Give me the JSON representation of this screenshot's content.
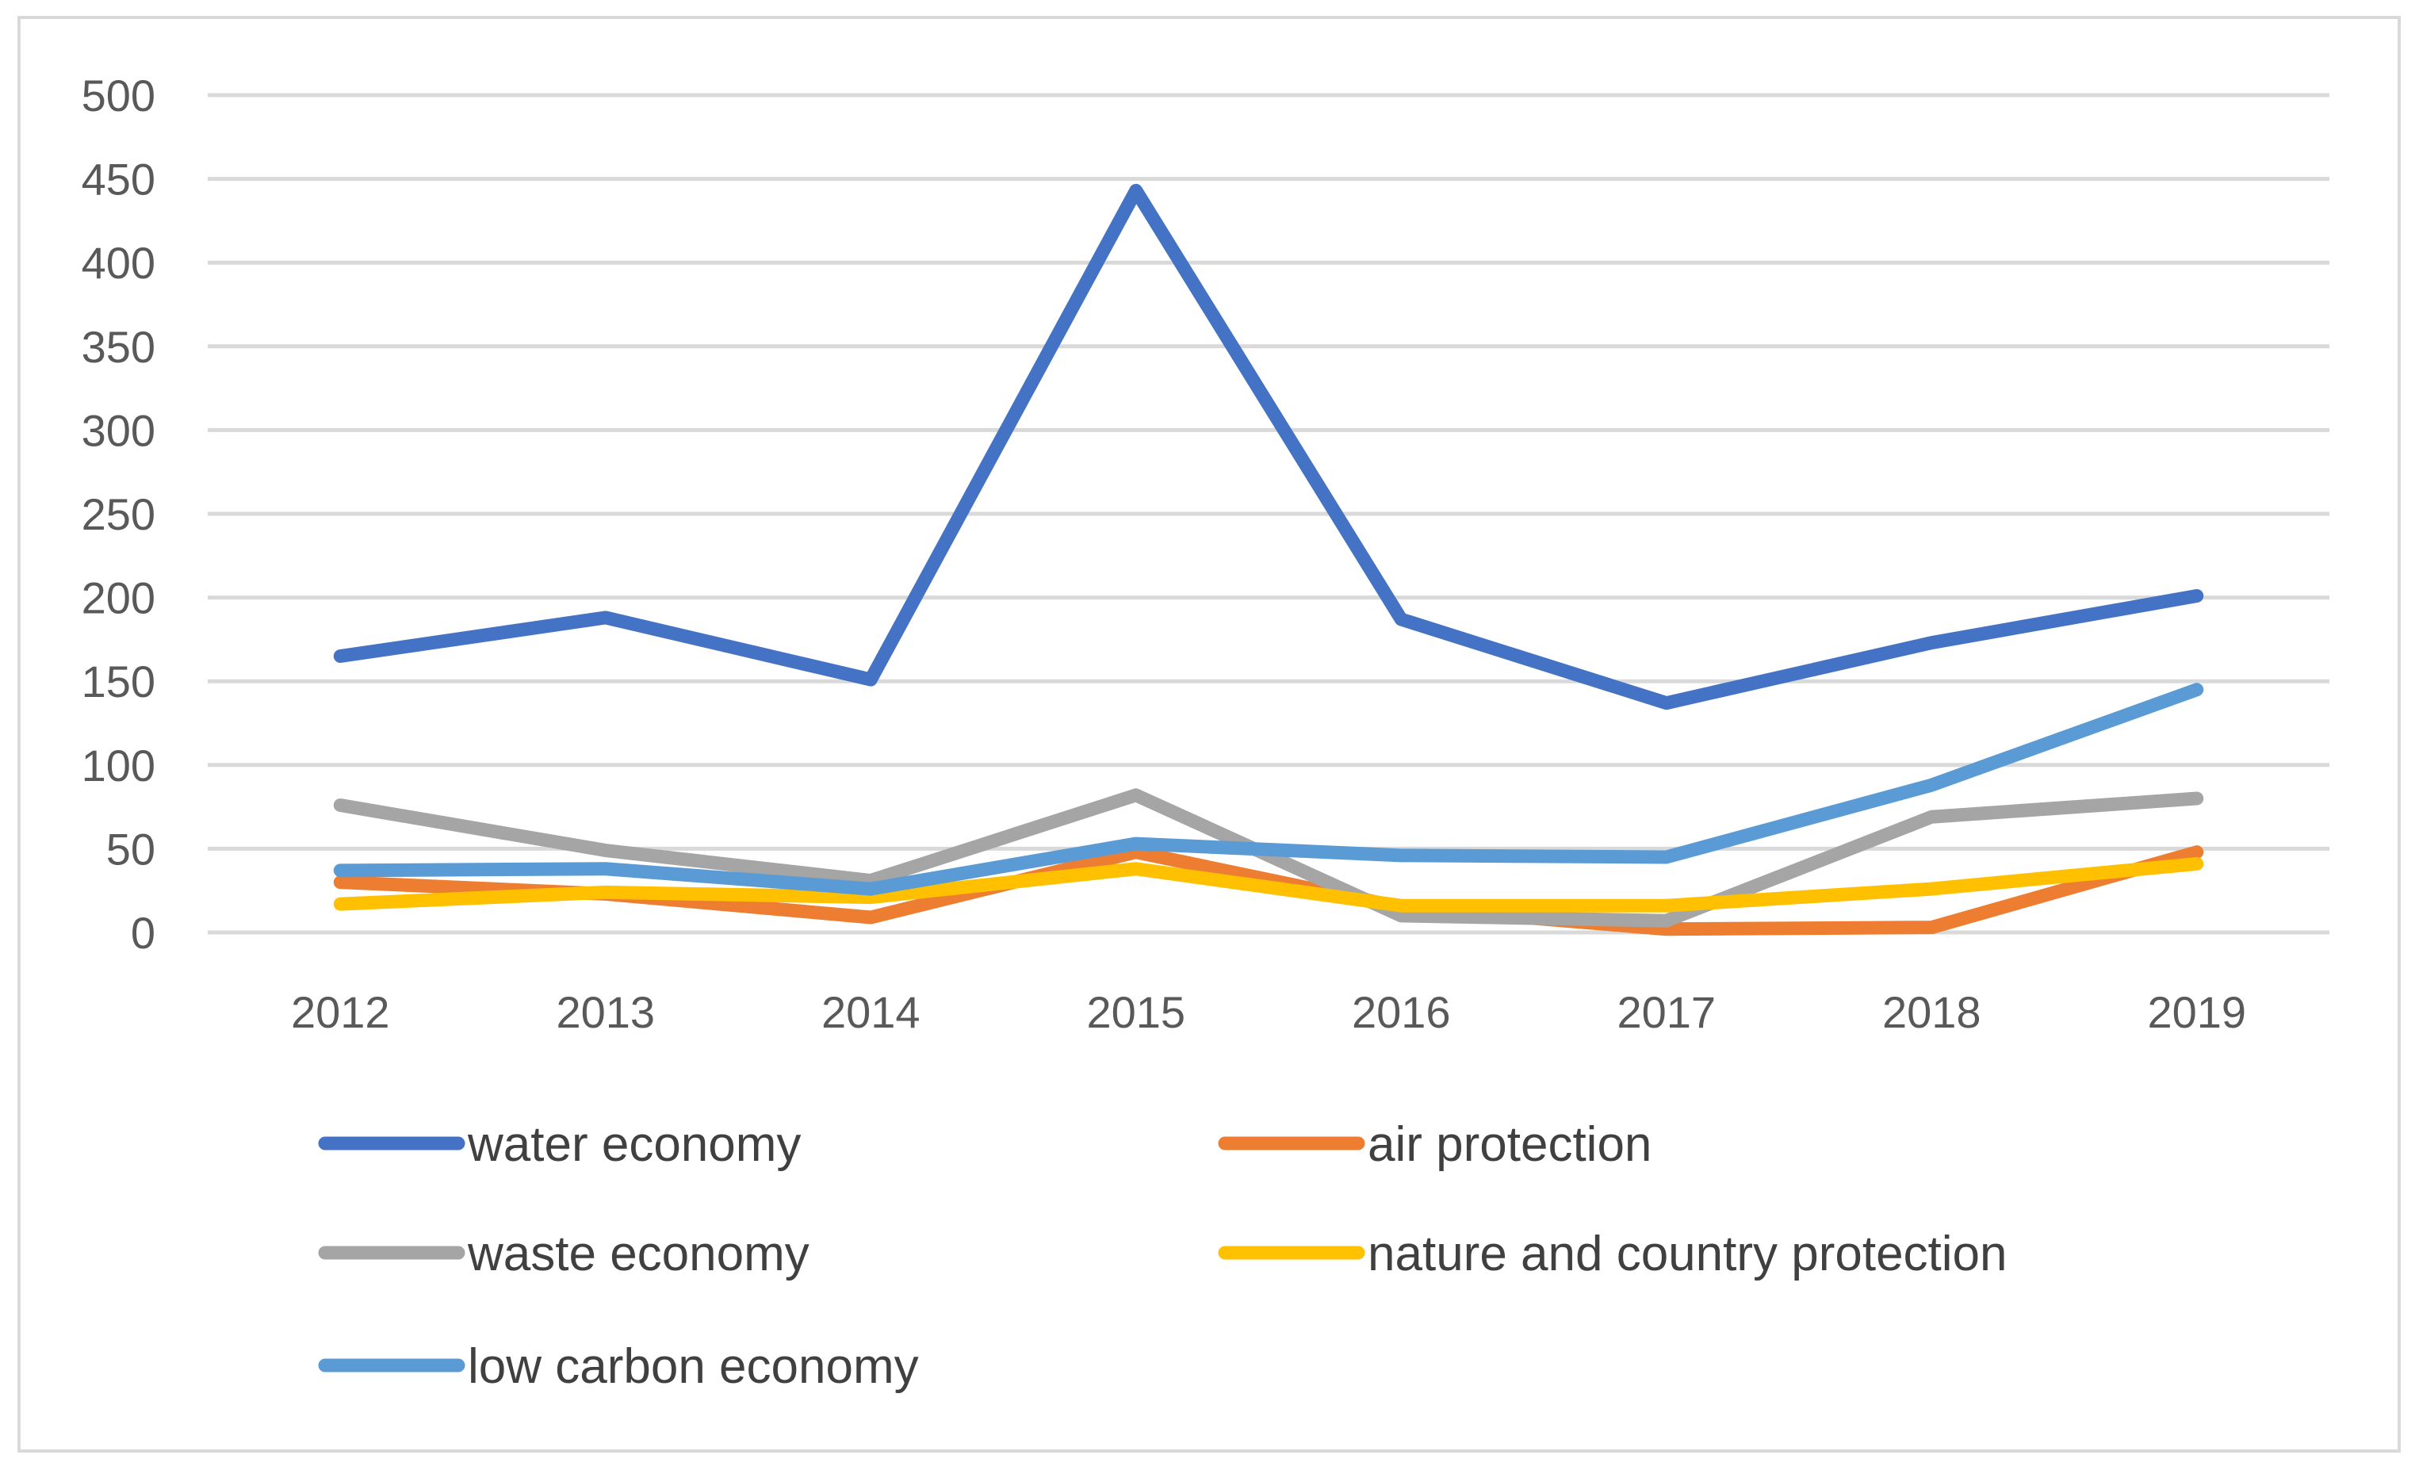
{
  "chart_data": {
    "type": "line",
    "title": "",
    "xlabel": "",
    "ylabel": "",
    "categories": [
      "2012",
      "2013",
      "2014",
      "2015",
      "2016",
      "2017",
      "2018",
      "2019"
    ],
    "ylim": [
      0,
      500
    ],
    "yticks": [
      0,
      50,
      100,
      150,
      200,
      250,
      300,
      350,
      400,
      450,
      500
    ],
    "grid": true,
    "legend_position": "bottom",
    "series": [
      {
        "name": "water economy",
        "color": "#4472c4",
        "values": [
          165,
          188,
          151,
          443,
          187,
          137,
          173,
          201
        ]
      },
      {
        "name": "air protection",
        "color": "#ed7d31",
        "values": [
          30,
          23,
          9,
          48,
          15,
          2,
          3,
          48
        ]
      },
      {
        "name": "waste economy",
        "color": "#a5a5a5",
        "values": [
          76,
          49,
          31,
          82,
          10,
          7,
          69,
          80
        ]
      },
      {
        "name": "nature and country protection",
        "color": "#ffc000",
        "values": [
          17,
          24,
          21,
          38,
          16,
          16,
          26,
          41
        ]
      },
      {
        "name": "low carbon economy",
        "color": "#5b9bd5",
        "values": [
          37,
          38,
          26,
          53,
          46,
          45,
          88,
          145
        ]
      }
    ]
  }
}
